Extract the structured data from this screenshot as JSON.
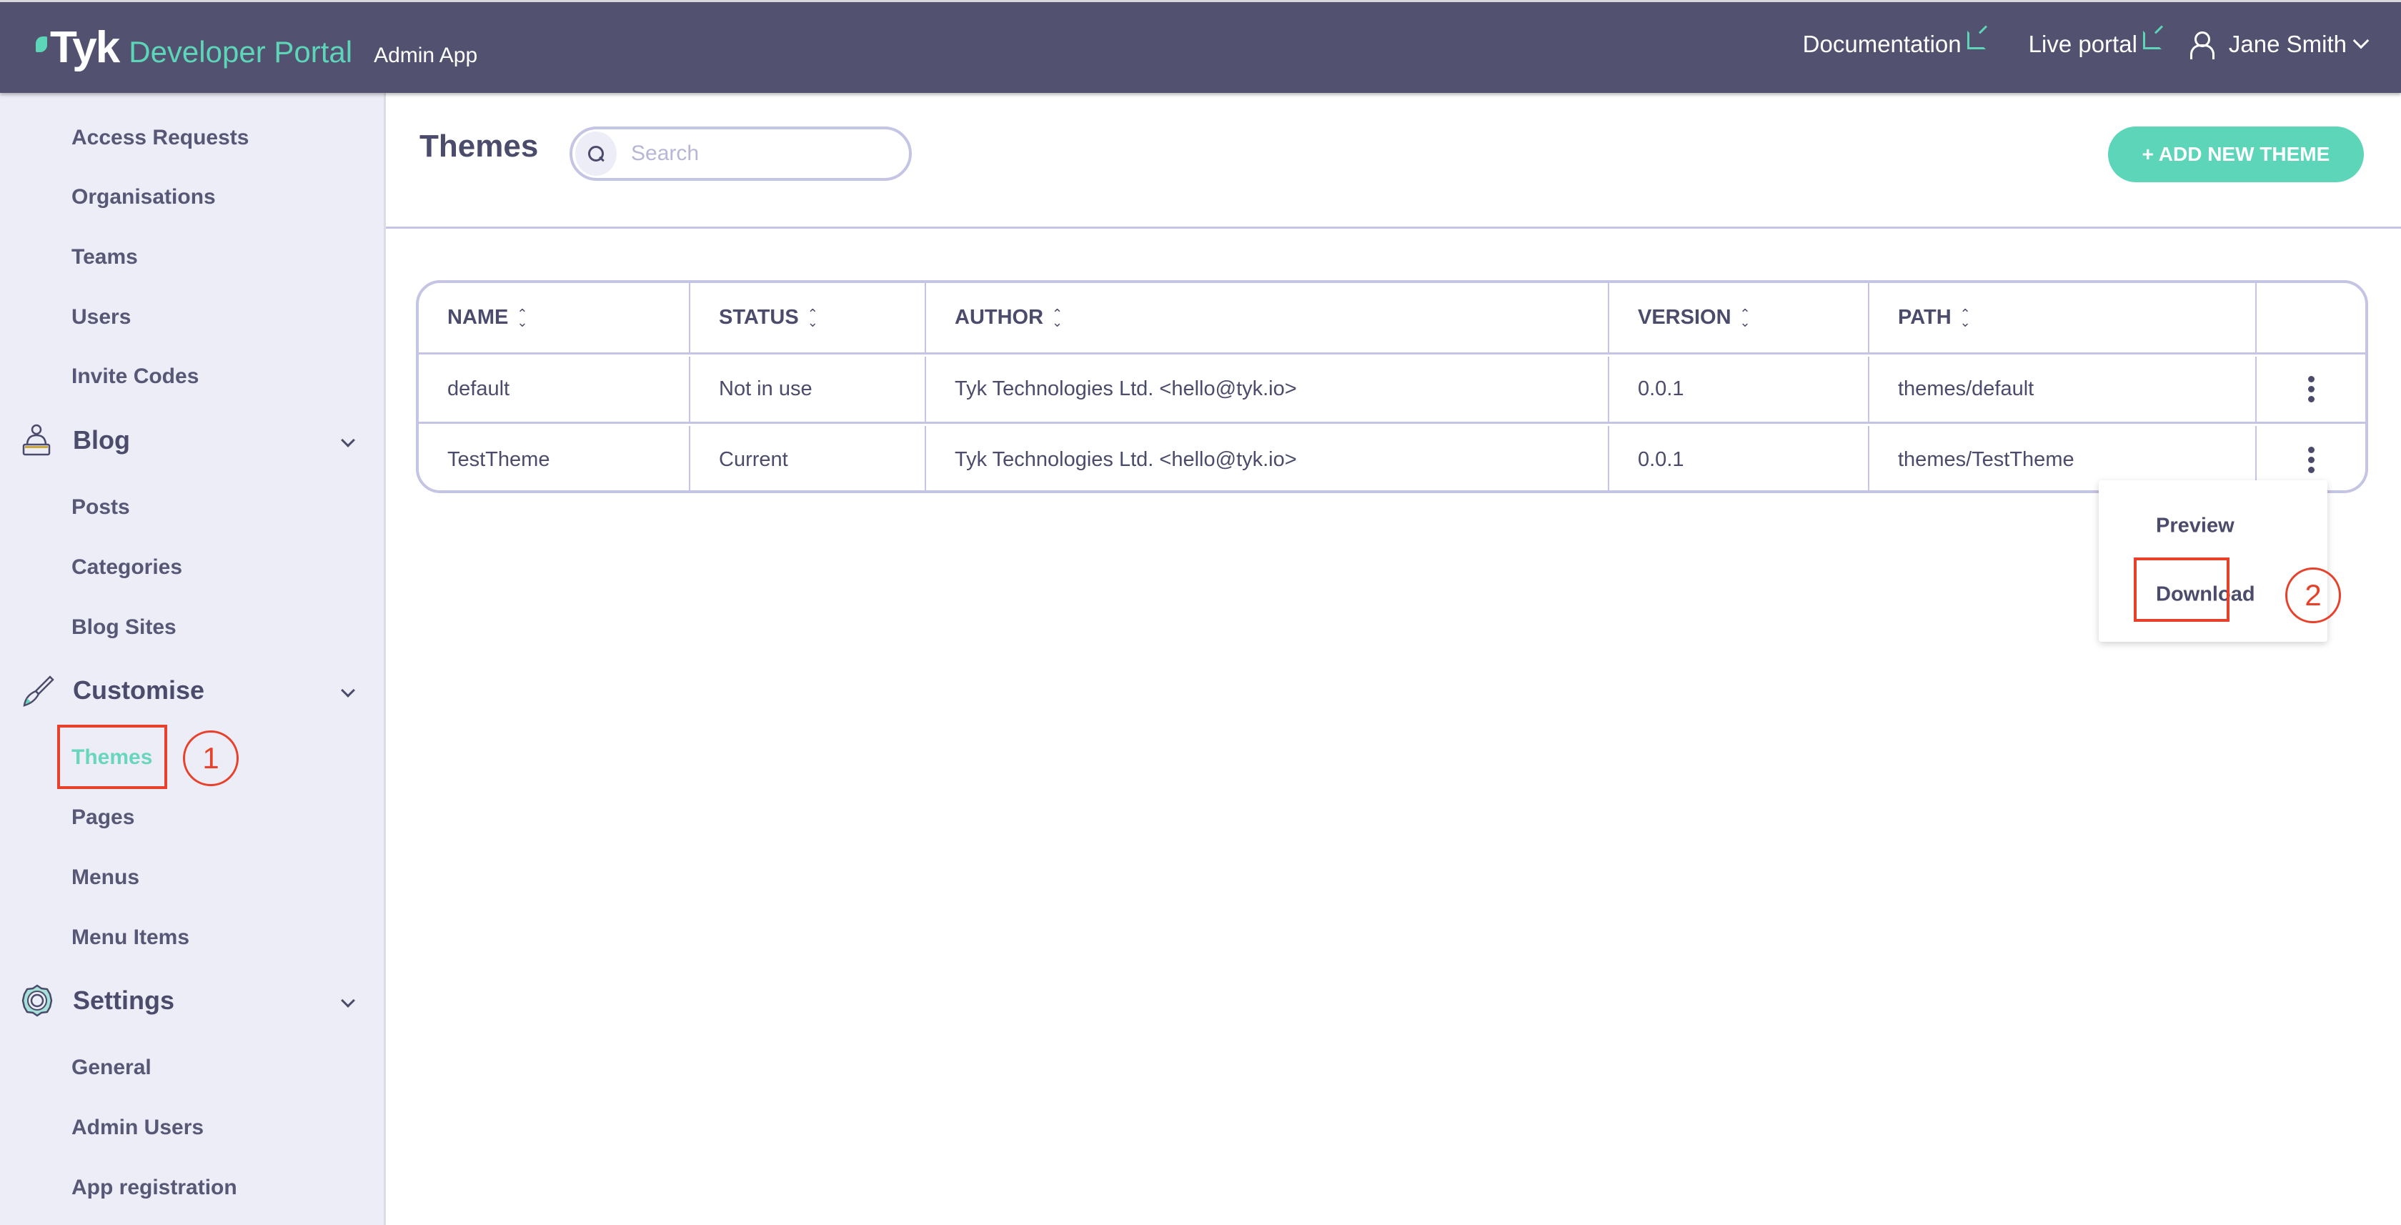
{
  "header": {
    "brand": "Tyk",
    "product": "Developer Portal",
    "app": "Admin App",
    "links": [
      {
        "label": "Documentation",
        "icon": "external-link-icon"
      },
      {
        "label": "Live portal",
        "icon": "external-link-icon"
      }
    ],
    "user": "Jane Smith"
  },
  "sidebar": {
    "items_top": [
      "Access Requests",
      "Organisations",
      "Teams",
      "Users",
      "Invite Codes"
    ],
    "blog": {
      "label": "Blog",
      "icon": "blog-icon",
      "items": [
        "Posts",
        "Categories",
        "Blog Sites"
      ]
    },
    "customise": {
      "label": "Customise",
      "icon": "paintbrush-icon",
      "items": [
        "Themes",
        "Pages",
        "Menus",
        "Menu Items"
      ],
      "active": "Themes"
    },
    "settings": {
      "label": "Settings",
      "icon": "gear-icon",
      "items": [
        "General",
        "Admin Users",
        "App registration"
      ]
    }
  },
  "main": {
    "title": "Themes",
    "search_placeholder": "Search",
    "add_button": "+ ADD NEW THEME",
    "table": {
      "columns": [
        "NAME",
        "STATUS",
        "AUTHOR",
        "VERSION",
        "PATH"
      ],
      "rows": [
        [
          "default",
          "Not in use",
          "Tyk Technologies Ltd. <hello@tyk.io>",
          "0.0.1",
          "themes/default"
        ],
        [
          "TestTheme",
          "Current",
          "Tyk Technologies Ltd. <hello@tyk.io>",
          "0.0.1",
          "themes/TestTheme"
        ]
      ]
    },
    "row_menu": {
      "items": [
        "Preview",
        "Download"
      ]
    }
  },
  "annotations": {
    "step1": "1",
    "step2": "2"
  },
  "colors": {
    "header": "#525270",
    "accent": "#5dd5b9",
    "sidebar": "#ededf8",
    "annotation": "#e8412b"
  }
}
